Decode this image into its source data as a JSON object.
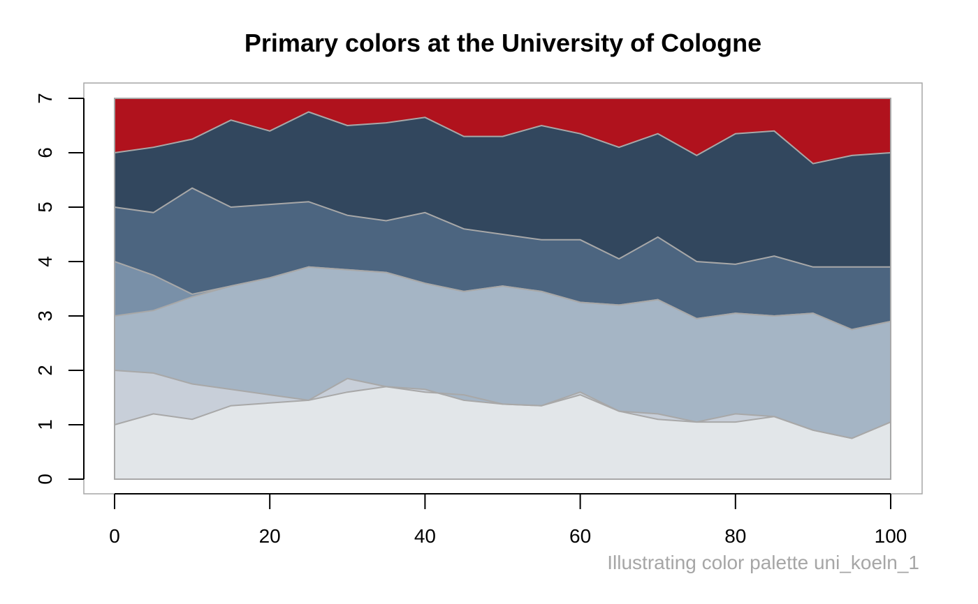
{
  "chart_data": {
    "type": "area",
    "title": "Primary colors at the University of Cologne",
    "caption": "Illustrating color palette uni_koeln_1",
    "xlabel": "",
    "ylabel": "",
    "xlim": [
      0,
      100
    ],
    "ylim": [
      0,
      7
    ],
    "x_ticks": [
      0,
      20,
      40,
      60,
      80,
      100
    ],
    "y_ticks": [
      0,
      1,
      2,
      3,
      4,
      5,
      6,
      7
    ],
    "grid": false,
    "legend": "none",
    "stacked": true,
    "border_color": "#a6a6a6",
    "x": [
      0,
      5,
      10,
      15,
      20,
      25,
      30,
      35,
      40,
      45,
      50,
      55,
      60,
      65,
      70,
      75,
      80,
      85,
      90,
      95,
      100
    ],
    "boundaries": [
      {
        "index": 1,
        "values": [
          1.0,
          1.2,
          1.1,
          1.35,
          1.4,
          1.45,
          1.6,
          1.7,
          1.6,
          1.55,
          1.38,
          1.35,
          1.55,
          1.25,
          1.1,
          1.05,
          1.05,
          1.15,
          0.9,
          0.75,
          1.05
        ]
      },
      {
        "index": 2,
        "values": [
          2.0,
          1.95,
          1.75,
          1.65,
          1.55,
          1.45,
          1.85,
          1.7,
          1.65,
          1.45,
          1.38,
          1.35,
          1.6,
          1.25,
          1.2,
          1.05,
          1.2,
          1.15,
          0.9,
          0.75,
          1.05
        ]
      },
      {
        "index": 3,
        "values": [
          3.0,
          3.1,
          3.35,
          3.55,
          3.7,
          3.9,
          3.85,
          3.8,
          3.6,
          3.45,
          3.55,
          3.45,
          3.25,
          3.2,
          3.3,
          2.95,
          3.05,
          3.0,
          3.05,
          2.75,
          2.9
        ]
      },
      {
        "index": 4,
        "values": [
          4.0,
          3.75,
          3.4,
          3.55,
          3.7,
          3.9,
          3.85,
          3.8,
          3.6,
          3.45,
          3.55,
          3.45,
          3.25,
          3.2,
          3.3,
          2.95,
          3.05,
          3.0,
          3.05,
          2.75,
          2.9
        ]
      },
      {
        "index": 5,
        "values": [
          5.0,
          4.9,
          5.35,
          5.0,
          5.05,
          5.1,
          4.85,
          4.75,
          4.9,
          4.6,
          4.5,
          4.4,
          4.4,
          4.05,
          4.45,
          4.0,
          3.95,
          4.1,
          3.9,
          3.9,
          3.9
        ]
      },
      {
        "index": 6,
        "values": [
          6.0,
          6.1,
          6.25,
          6.6,
          6.4,
          6.75,
          6.5,
          6.55,
          6.65,
          6.3,
          6.3,
          6.5,
          6.35,
          6.1,
          6.35,
          5.95,
          6.35,
          6.4,
          5.8,
          5.95,
          6.0
        ]
      },
      {
        "index": 7,
        "values": [
          7,
          7,
          7,
          7,
          7,
          7,
          7,
          7,
          7,
          7,
          7,
          7,
          7,
          7,
          7,
          7,
          7,
          7,
          7,
          7,
          7
        ]
      }
    ],
    "fill_colors": [
      "#e2e6e9",
      "#c8cfd9",
      "#a5b5c5",
      "#7990a8",
      "#4c6580",
      "#32475e",
      "#b0121d"
    ],
    "outline_color": "#a8a8a8"
  }
}
